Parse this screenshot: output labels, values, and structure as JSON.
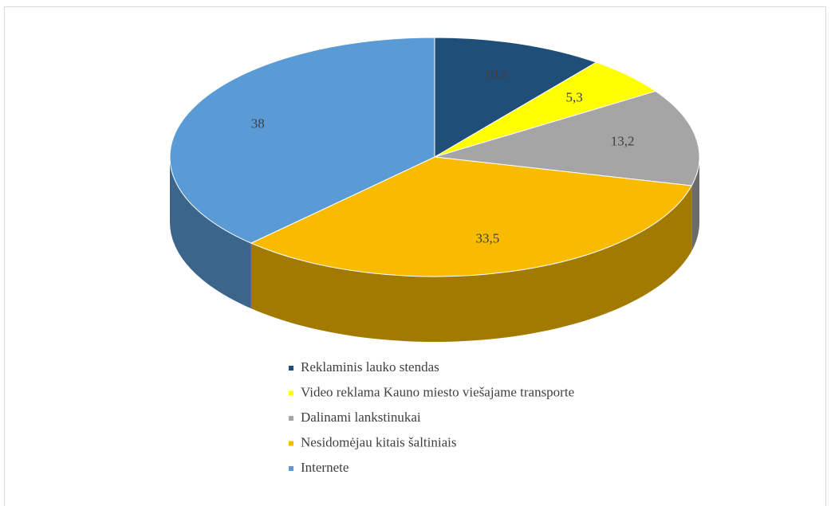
{
  "chart_data": {
    "type": "pie",
    "categories": [
      "Reklaminis lauko stendas",
      "Video reklama Kauno miesto viešajame transporte",
      "Dalinami lankstinukai",
      "Nesidomėjau kitais šaltiniais",
      "Internete"
    ],
    "values": [
      10.5,
      5.3,
      13.2,
      33.5,
      38
    ],
    "value_labels": [
      "10,5",
      "5,3",
      "13,2",
      "33,5",
      "38"
    ],
    "colors": [
      "#1f4e79",
      "#ffff00",
      "#a5a5a5",
      "#f9bb00",
      "#5b9bd5"
    ],
    "legend": "bottom"
  }
}
